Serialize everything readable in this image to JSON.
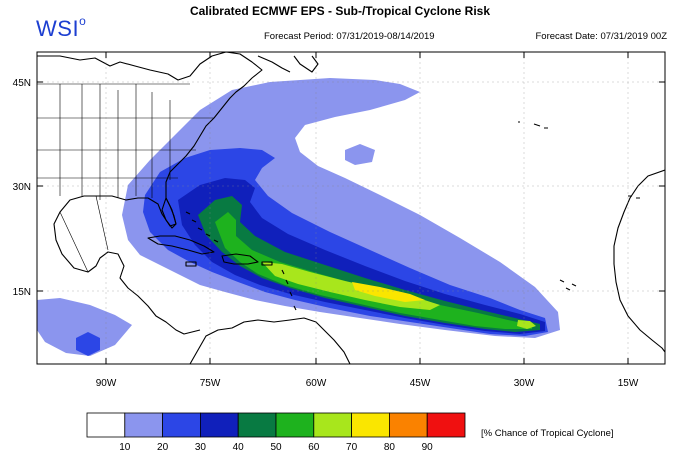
{
  "header": {
    "logo": "WSI",
    "title": "Calibrated ECMWF EPS - Sub-/Tropical Cyclone Risk",
    "forecast_period": "Forecast Period: 07/31/2019-08/14/2019",
    "forecast_date": "Forecast Date: 07/31/2019 00Z"
  },
  "map": {
    "lat_labels": [
      "45N",
      "30N",
      "15N"
    ],
    "lon_labels": [
      "90W",
      "75W",
      "60W",
      "45W",
      "30W",
      "15W"
    ]
  },
  "legend": {
    "ticks": [
      "10",
      "20",
      "30",
      "40",
      "50",
      "60",
      "70",
      "80",
      "90"
    ],
    "colors": [
      "#ffffff",
      "#8b95ee",
      "#2c46e6",
      "#1020bb",
      "#087a42",
      "#1eb21e",
      "#a8e61c",
      "#fae600",
      "#fa8200",
      "#f01010"
    ],
    "label": "[% Chance of Tropical Cyclone]"
  }
}
